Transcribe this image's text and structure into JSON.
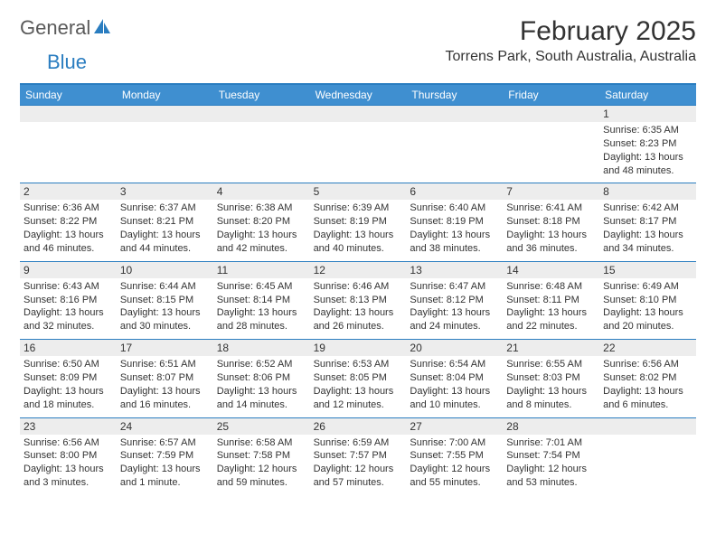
{
  "brand": {
    "part1": "General",
    "part2": "Blue"
  },
  "colors": {
    "accent": "#2a7dc0",
    "header_bg": "#3f8fd0",
    "daynum_bg": "#ededed",
    "text": "#333333",
    "logo_gray": "#5a5a5a",
    "white": "#ffffff"
  },
  "title": "February 2025",
  "location": "Torrens Park, South Australia, Australia",
  "weekdays": [
    "Sunday",
    "Monday",
    "Tuesday",
    "Wednesday",
    "Thursday",
    "Friday",
    "Saturday"
  ],
  "weeks": [
    [
      {
        "day": "",
        "sunrise": "",
        "sunset": "",
        "daylight": ""
      },
      {
        "day": "",
        "sunrise": "",
        "sunset": "",
        "daylight": ""
      },
      {
        "day": "",
        "sunrise": "",
        "sunset": "",
        "daylight": ""
      },
      {
        "day": "",
        "sunrise": "",
        "sunset": "",
        "daylight": ""
      },
      {
        "day": "",
        "sunrise": "",
        "sunset": "",
        "daylight": ""
      },
      {
        "day": "",
        "sunrise": "",
        "sunset": "",
        "daylight": ""
      },
      {
        "day": "1",
        "sunrise": "Sunrise: 6:35 AM",
        "sunset": "Sunset: 8:23 PM",
        "daylight": "Daylight: 13 hours and 48 minutes."
      }
    ],
    [
      {
        "day": "2",
        "sunrise": "Sunrise: 6:36 AM",
        "sunset": "Sunset: 8:22 PM",
        "daylight": "Daylight: 13 hours and 46 minutes."
      },
      {
        "day": "3",
        "sunrise": "Sunrise: 6:37 AM",
        "sunset": "Sunset: 8:21 PM",
        "daylight": "Daylight: 13 hours and 44 minutes."
      },
      {
        "day": "4",
        "sunrise": "Sunrise: 6:38 AM",
        "sunset": "Sunset: 8:20 PM",
        "daylight": "Daylight: 13 hours and 42 minutes."
      },
      {
        "day": "5",
        "sunrise": "Sunrise: 6:39 AM",
        "sunset": "Sunset: 8:19 PM",
        "daylight": "Daylight: 13 hours and 40 minutes."
      },
      {
        "day": "6",
        "sunrise": "Sunrise: 6:40 AM",
        "sunset": "Sunset: 8:19 PM",
        "daylight": "Daylight: 13 hours and 38 minutes."
      },
      {
        "day": "7",
        "sunrise": "Sunrise: 6:41 AM",
        "sunset": "Sunset: 8:18 PM",
        "daylight": "Daylight: 13 hours and 36 minutes."
      },
      {
        "day": "8",
        "sunrise": "Sunrise: 6:42 AM",
        "sunset": "Sunset: 8:17 PM",
        "daylight": "Daylight: 13 hours and 34 minutes."
      }
    ],
    [
      {
        "day": "9",
        "sunrise": "Sunrise: 6:43 AM",
        "sunset": "Sunset: 8:16 PM",
        "daylight": "Daylight: 13 hours and 32 minutes."
      },
      {
        "day": "10",
        "sunrise": "Sunrise: 6:44 AM",
        "sunset": "Sunset: 8:15 PM",
        "daylight": "Daylight: 13 hours and 30 minutes."
      },
      {
        "day": "11",
        "sunrise": "Sunrise: 6:45 AM",
        "sunset": "Sunset: 8:14 PM",
        "daylight": "Daylight: 13 hours and 28 minutes."
      },
      {
        "day": "12",
        "sunrise": "Sunrise: 6:46 AM",
        "sunset": "Sunset: 8:13 PM",
        "daylight": "Daylight: 13 hours and 26 minutes."
      },
      {
        "day": "13",
        "sunrise": "Sunrise: 6:47 AM",
        "sunset": "Sunset: 8:12 PM",
        "daylight": "Daylight: 13 hours and 24 minutes."
      },
      {
        "day": "14",
        "sunrise": "Sunrise: 6:48 AM",
        "sunset": "Sunset: 8:11 PM",
        "daylight": "Daylight: 13 hours and 22 minutes."
      },
      {
        "day": "15",
        "sunrise": "Sunrise: 6:49 AM",
        "sunset": "Sunset: 8:10 PM",
        "daylight": "Daylight: 13 hours and 20 minutes."
      }
    ],
    [
      {
        "day": "16",
        "sunrise": "Sunrise: 6:50 AM",
        "sunset": "Sunset: 8:09 PM",
        "daylight": "Daylight: 13 hours and 18 minutes."
      },
      {
        "day": "17",
        "sunrise": "Sunrise: 6:51 AM",
        "sunset": "Sunset: 8:07 PM",
        "daylight": "Daylight: 13 hours and 16 minutes."
      },
      {
        "day": "18",
        "sunrise": "Sunrise: 6:52 AM",
        "sunset": "Sunset: 8:06 PM",
        "daylight": "Daylight: 13 hours and 14 minutes."
      },
      {
        "day": "19",
        "sunrise": "Sunrise: 6:53 AM",
        "sunset": "Sunset: 8:05 PM",
        "daylight": "Daylight: 13 hours and 12 minutes."
      },
      {
        "day": "20",
        "sunrise": "Sunrise: 6:54 AM",
        "sunset": "Sunset: 8:04 PM",
        "daylight": "Daylight: 13 hours and 10 minutes."
      },
      {
        "day": "21",
        "sunrise": "Sunrise: 6:55 AM",
        "sunset": "Sunset: 8:03 PM",
        "daylight": "Daylight: 13 hours and 8 minutes."
      },
      {
        "day": "22",
        "sunrise": "Sunrise: 6:56 AM",
        "sunset": "Sunset: 8:02 PM",
        "daylight": "Daylight: 13 hours and 6 minutes."
      }
    ],
    [
      {
        "day": "23",
        "sunrise": "Sunrise: 6:56 AM",
        "sunset": "Sunset: 8:00 PM",
        "daylight": "Daylight: 13 hours and 3 minutes."
      },
      {
        "day": "24",
        "sunrise": "Sunrise: 6:57 AM",
        "sunset": "Sunset: 7:59 PM",
        "daylight": "Daylight: 13 hours and 1 minute."
      },
      {
        "day": "25",
        "sunrise": "Sunrise: 6:58 AM",
        "sunset": "Sunset: 7:58 PM",
        "daylight": "Daylight: 12 hours and 59 minutes."
      },
      {
        "day": "26",
        "sunrise": "Sunrise: 6:59 AM",
        "sunset": "Sunset: 7:57 PM",
        "daylight": "Daylight: 12 hours and 57 minutes."
      },
      {
        "day": "27",
        "sunrise": "Sunrise: 7:00 AM",
        "sunset": "Sunset: 7:55 PM",
        "daylight": "Daylight: 12 hours and 55 minutes."
      },
      {
        "day": "28",
        "sunrise": "Sunrise: 7:01 AM",
        "sunset": "Sunset: 7:54 PM",
        "daylight": "Daylight: 12 hours and 53 minutes."
      },
      {
        "day": "",
        "sunrise": "",
        "sunset": "",
        "daylight": ""
      }
    ]
  ]
}
